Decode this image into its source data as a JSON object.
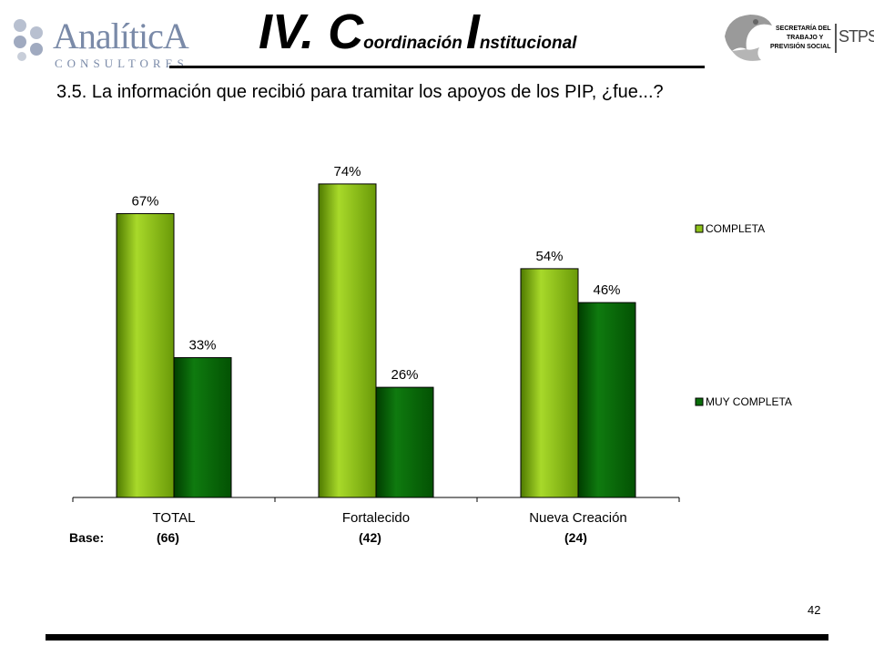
{
  "logo_left": {
    "name": "AnalíticA",
    "subtitle": "CONSULTORES"
  },
  "header": {
    "roman": "IV. ",
    "c_initial": "C",
    "c_rest": "oordinación",
    "i_initial": "I",
    "i_rest": "nstitucional"
  },
  "logo_right": {
    "line1": "SECRETARÍA DEL",
    "line2": "TRABAJO Y",
    "line3": "PREVISIÓN SOCIAL",
    "mark": "STPS"
  },
  "question": "3.5. La información que recibió para tramitar los apoyos de los PIP, ¿fue...?",
  "base": {
    "label": "Base:",
    "values": [
      "(66)",
      "(42)",
      "(24)"
    ]
  },
  "page_number": "42",
  "colors": {
    "completa": "#8ec21a",
    "muy_completa": "#0a6e0a"
  },
  "chart_data": {
    "type": "bar",
    "categories": [
      "TOTAL",
      "Fortalecido",
      "Nueva Creación"
    ],
    "series": [
      {
        "name": "COMPLETA",
        "values": [
          67,
          74,
          54
        ],
        "labels": [
          "67%",
          "74%",
          "54%"
        ]
      },
      {
        "name": "MUY COMPLETA",
        "values": [
          33,
          26,
          46
        ],
        "labels": [
          "33%",
          "26%",
          "46%"
        ]
      }
    ],
    "ylim": [
      0,
      80
    ],
    "grid": false,
    "legend": "right"
  }
}
